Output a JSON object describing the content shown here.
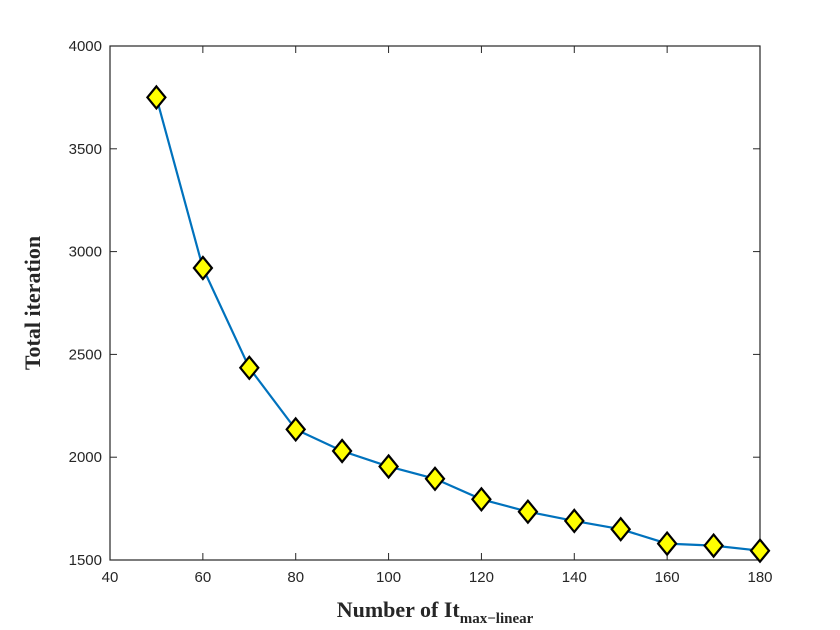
{
  "chart_data": {
    "type": "line",
    "title": "",
    "xlabel_main": "Number of It",
    "xlabel_sub": "max−linear",
    "ylabel": "Total iteration",
    "xlim": [
      40,
      180
    ],
    "ylim": [
      1500,
      4000
    ],
    "xticks": [
      "40",
      "60",
      "80",
      "100",
      "120",
      "140",
      "160",
      "180"
    ],
    "yticks": [
      "1500",
      "2000",
      "2500",
      "3000",
      "3500",
      "4000"
    ],
    "grid": false,
    "line_color": "#0072BD",
    "marker": "diamond",
    "marker_fill": "#FFFF00",
    "marker_edge": "#000000",
    "x": [
      50,
      60,
      70,
      80,
      90,
      100,
      110,
      120,
      130,
      140,
      150,
      160,
      170,
      180
    ],
    "y": [
      3750,
      2920,
      2435,
      2135,
      2030,
      1955,
      1895,
      1795,
      1735,
      1690,
      1650,
      1580,
      1570,
      1545
    ]
  }
}
